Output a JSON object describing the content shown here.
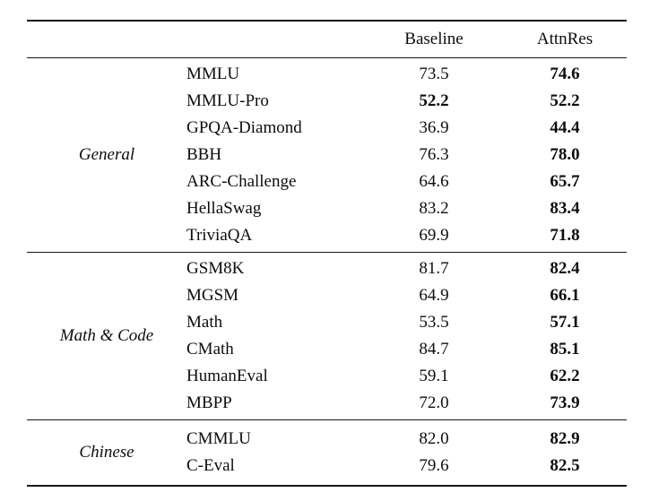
{
  "header": {
    "col_baseline": "Baseline",
    "col_attnres": "AttnRes"
  },
  "groups": [
    {
      "label": "General",
      "rows": [
        {
          "name": "MMLU",
          "baseline": "73.5",
          "attnres": "74.6",
          "baseline_bold": false,
          "attnres_bold": true
        },
        {
          "name": "MMLU-Pro",
          "baseline": "52.2",
          "attnres": "52.2",
          "baseline_bold": true,
          "attnres_bold": true
        },
        {
          "name": "GPQA-Diamond",
          "baseline": "36.9",
          "attnres": "44.4",
          "baseline_bold": false,
          "attnres_bold": true
        },
        {
          "name": "BBH",
          "baseline": "76.3",
          "attnres": "78.0",
          "baseline_bold": false,
          "attnres_bold": true
        },
        {
          "name": "ARC-Challenge",
          "baseline": "64.6",
          "attnres": "65.7",
          "baseline_bold": false,
          "attnres_bold": true
        },
        {
          "name": "HellaSwag",
          "baseline": "83.2",
          "attnres": "83.4",
          "baseline_bold": false,
          "attnres_bold": true
        },
        {
          "name": "TriviaQA",
          "baseline": "69.9",
          "attnres": "71.8",
          "baseline_bold": false,
          "attnres_bold": true
        }
      ]
    },
    {
      "label": "Math & Code",
      "rows": [
        {
          "name": "GSM8K",
          "baseline": "81.7",
          "attnres": "82.4",
          "baseline_bold": false,
          "attnres_bold": true
        },
        {
          "name": "MGSM",
          "baseline": "64.9",
          "attnres": "66.1",
          "baseline_bold": false,
          "attnres_bold": true
        },
        {
          "name": "Math",
          "baseline": "53.5",
          "attnres": "57.1",
          "baseline_bold": false,
          "attnres_bold": true
        },
        {
          "name": "CMath",
          "baseline": "84.7",
          "attnres": "85.1",
          "baseline_bold": false,
          "attnres_bold": true
        },
        {
          "name": "HumanEval",
          "baseline": "59.1",
          "attnres": "62.2",
          "baseline_bold": false,
          "attnres_bold": true
        },
        {
          "name": "MBPP",
          "baseline": "72.0",
          "attnres": "73.9",
          "baseline_bold": false,
          "attnres_bold": true
        }
      ]
    },
    {
      "label": "Chinese",
      "rows": [
        {
          "name": "CMMLU",
          "baseline": "82.0",
          "attnres": "82.9",
          "baseline_bold": false,
          "attnres_bold": true
        },
        {
          "name": "C-Eval",
          "baseline": "79.6",
          "attnres": "82.5",
          "baseline_bold": false,
          "attnres_bold": true
        }
      ]
    }
  ]
}
